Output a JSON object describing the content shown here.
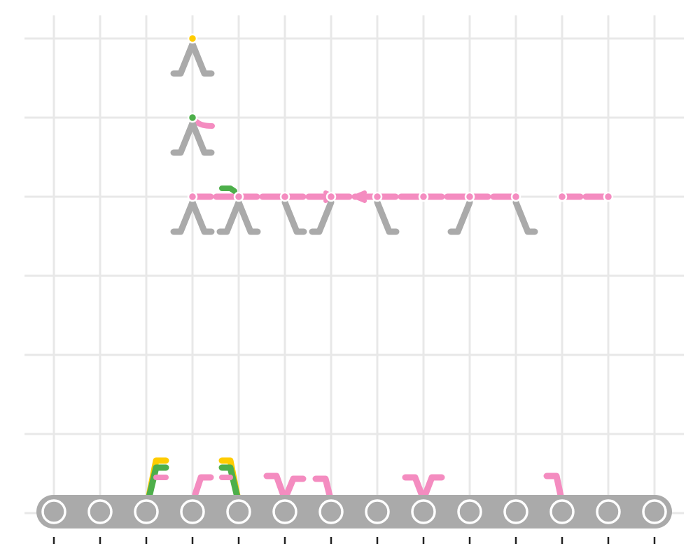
{
  "colors": {
    "grid": "#e8e8e8",
    "gray": "#aaaaaa",
    "pink": "#f48cc0",
    "green": "#4daf4a",
    "yellow": "#ffcc00",
    "white": "#ffffff",
    "tick": "#222222"
  },
  "diagram": {
    "columns": 14,
    "rows": 7,
    "conveyor_circles": 14,
    "top_nodes": [
      {
        "col": 3,
        "row": 0,
        "color": "yellow",
        "legs": "both"
      },
      {
        "col": 3,
        "row": 1,
        "color": "green",
        "legs": "both",
        "tail": "pink-right"
      },
      {
        "col": 3,
        "row": 2,
        "color": "pink",
        "legs": "both"
      },
      {
        "col": 4,
        "row": 2,
        "color": "pink",
        "legs": "both",
        "top": "green"
      },
      {
        "col": 5,
        "row": 2,
        "color": "pink",
        "legs": "right"
      },
      {
        "col": 6,
        "row": 2,
        "color": "pink",
        "legs": "left"
      },
      {
        "col": 7,
        "row": 2,
        "color": "pink",
        "legs": "right"
      },
      {
        "col": 8,
        "row": 2,
        "color": "pink",
        "legs": "none"
      },
      {
        "col": 9,
        "row": 2,
        "color": "pink",
        "legs": "left"
      },
      {
        "col": 10,
        "row": 2,
        "color": "pink",
        "legs": "right"
      },
      {
        "col": 11,
        "row": 2,
        "color": "pink",
        "legs": "none"
      },
      {
        "col": 12,
        "row": 2,
        "color": "pink",
        "legs": "none"
      }
    ]
  }
}
